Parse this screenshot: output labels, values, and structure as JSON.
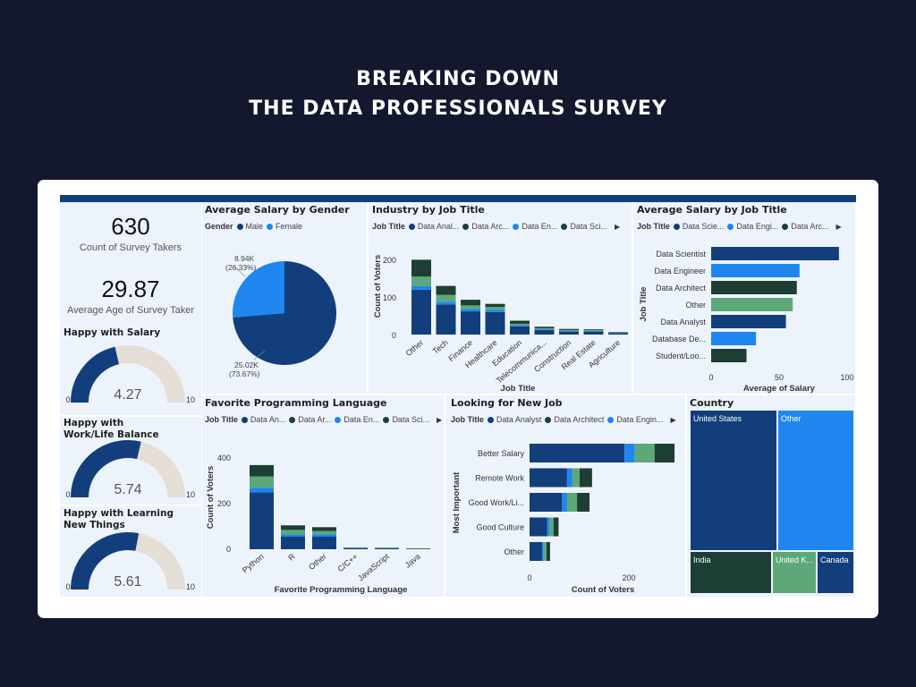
{
  "header": {
    "line1": "BREAKING DOWN",
    "line2": "THE DATA PROFESSIONALS SURVEY"
  },
  "colors": {
    "navy": "#123e7c",
    "blue": "#1f86f0",
    "green": "#5ca878",
    "dark_green": "#1d3e34",
    "gauge_track": "#e4ded6"
  },
  "kpis": [
    {
      "value": "630",
      "label": "Count of Survey Takers"
    },
    {
      "value": "29.87",
      "label": "Average Age of Survey Taker"
    }
  ],
  "gauges": [
    {
      "title": "Happy with Salary",
      "value": "4.27",
      "min": "0",
      "max": "10",
      "fraction": 0.427
    },
    {
      "title": "Happy with Work/Life Balance",
      "value": "5.74",
      "min": "0",
      "max": "10",
      "fraction": 0.574
    },
    {
      "title": "Happy with Learning New Things",
      "value": "5.61",
      "min": "0",
      "max": "10",
      "fraction": 0.561
    }
  ],
  "salary_gender": {
    "title": "Average Salary by Gender",
    "legend_title": "Gender",
    "legend": [
      "Male",
      "Female"
    ],
    "chart_data": {
      "type": "pie",
      "slices": [
        {
          "name": "Male",
          "value": 25.02,
          "label": "25.02K",
          "pct": "(73.67%)"
        },
        {
          "name": "Female",
          "value": 8.94,
          "label": "8.94K",
          "pct": "(26.33%)"
        }
      ]
    }
  },
  "industry": {
    "title": "Industry by Job Title",
    "legend_title": "Job Title",
    "legend": [
      "Data Anal...",
      "Data Arc...",
      "Data En...",
      "Data Sci..."
    ],
    "ylabel": "Count of Voters",
    "xlabel": "Job Title",
    "yticks": [
      "0",
      "100",
      "200"
    ],
    "chart_data": {
      "type": "bar",
      "stacked": true,
      "ylim": [
        0,
        220
      ],
      "categories": [
        "Other",
        "Tech",
        "Finance",
        "Healthcare",
        "Education",
        "Telecommunica...",
        "Construction",
        "Real Estate",
        "Agriculture"
      ],
      "series": [
        {
          "color": "#123e7c",
          "values": [
            120,
            80,
            62,
            60,
            22,
            12,
            8,
            8,
            4
          ]
        },
        {
          "color": "#1f86f0",
          "values": [
            10,
            8,
            6,
            6,
            3,
            2,
            2,
            2,
            1
          ]
        },
        {
          "color": "#5ca878",
          "values": [
            25,
            18,
            10,
            8,
            4,
            3,
            2,
            2,
            1
          ]
        },
        {
          "color": "#1d3e34",
          "values": [
            45,
            24,
            15,
            8,
            8,
            4,
            3,
            2,
            1
          ]
        }
      ]
    }
  },
  "salary_job": {
    "title": "Average Salary by Job Title",
    "legend_title": "Job Title",
    "legend": [
      "Data Scie...",
      "Data Engi...",
      "Data Arc..."
    ],
    "ylabel": "Job Title",
    "xlabel": "Average of Salary",
    "xticks": [
      "0",
      "50",
      "100"
    ],
    "chart_data": {
      "type": "bar",
      "orientation": "horizontal",
      "xlim": [
        0,
        100
      ],
      "categories": [
        "Data Scientist",
        "Data Engineer",
        "Data Architect",
        "Other",
        "Data Analyst",
        "Database De...",
        "Student/Loo..."
      ],
      "values": [
        94,
        65,
        63,
        60,
        55,
        33,
        26
      ],
      "colors": [
        "#123e7c",
        "#1f86f0",
        "#1d3e34",
        "#5ca878",
        "#123e7c",
        "#1f86f0",
        "#1d3e34"
      ]
    }
  },
  "languages": {
    "title": "Favorite Programming Language",
    "legend_title": "Job Title",
    "legend": [
      "Data An...",
      "Data Ar...",
      "Data En...",
      "Data Sci..."
    ],
    "ylabel": "Count of Voters",
    "xlabel": "Favorite Programming Language",
    "yticks": [
      "0",
      "200",
      "400"
    ],
    "chart_data": {
      "type": "bar",
      "stacked": true,
      "ylim": [
        0,
        460
      ],
      "categories": [
        "Python",
        "R",
        "Other",
        "C/C++",
        "JavaScript",
        "Java"
      ],
      "series": [
        {
          "color": "#123e7c",
          "values": [
            250,
            55,
            55,
            5,
            4,
            2
          ]
        },
        {
          "color": "#1f86f0",
          "values": [
            20,
            10,
            10,
            1,
            1,
            0
          ]
        },
        {
          "color": "#5ca878",
          "values": [
            50,
            20,
            15,
            1,
            1,
            1
          ]
        },
        {
          "color": "#1d3e34",
          "values": [
            50,
            20,
            17,
            1,
            1,
            1
          ]
        }
      ]
    }
  },
  "new_job": {
    "title": "Looking for New Job",
    "legend_title": "Job Title",
    "legend": [
      "Data Analyst",
      "Data Architect",
      "Data Engin..."
    ],
    "ylabel": "Most Important",
    "xlabel": "Count of Voters",
    "xticks": [
      "0",
      "200"
    ],
    "chart_data": {
      "type": "bar",
      "orientation": "horizontal",
      "stacked": true,
      "xlim": [
        0,
        340
      ],
      "categories": [
        "Better Salary",
        "Remote Work",
        "Good Work/Li...",
        "Good Culture",
        "Other"
      ],
      "series": [
        {
          "color": "#123e7c",
          "values": [
            190,
            75,
            65,
            35,
            25
          ]
        },
        {
          "color": "#1f86f0",
          "values": [
            20,
            10,
            10,
            5,
            3
          ]
        },
        {
          "color": "#5ca878",
          "values": [
            40,
            15,
            20,
            8,
            6
          ]
        },
        {
          "color": "#1d3e34",
          "values": [
            40,
            25,
            25,
            10,
            7
          ]
        }
      ]
    }
  },
  "country": {
    "title": "Country",
    "chart_data": {
      "type": "treemap",
      "items": [
        {
          "name": "United States",
          "color": "#123e7c"
        },
        {
          "name": "Other",
          "color": "#1f86f0"
        },
        {
          "name": "India",
          "color": "#1d3e34"
        },
        {
          "name": "United K...",
          "color": "#5ca878"
        },
        {
          "name": "Canada",
          "color": "#123e7c"
        }
      ]
    }
  }
}
